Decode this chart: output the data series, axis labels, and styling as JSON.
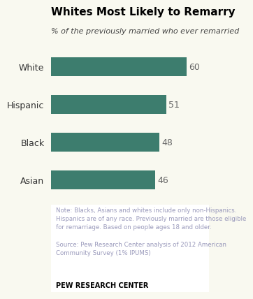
{
  "title": "Whites Most Likely to Remarry",
  "subtitle": "% of the previously married who ever remarried",
  "categories": [
    "White",
    "Hispanic",
    "Black",
    "Asian"
  ],
  "values": [
    60,
    51,
    48,
    46
  ],
  "bar_color": "#3d7d6e",
  "value_color": "#666666",
  "title_color": "#000000",
  "subtitle_color": "#444444",
  "note_text": "Note: Blacks, Asians and whites include only non-Hispanics.\nHispanics are of any race. Previously married are those eligible\nfor remarriage. Based on people ages 18 and older.",
  "source_text": "Source: Pew Research Center analysis of 2012 American\nCommunity Survey (1% IPUMS)",
  "branding": "PEW RESEARCH CENTER",
  "note_color": "#9999bb",
  "branding_color": "#000000",
  "xlim": [
    0,
    70
  ],
  "chart_bg": "#f9f9f0",
  "bottom_bg": "#ffffff"
}
